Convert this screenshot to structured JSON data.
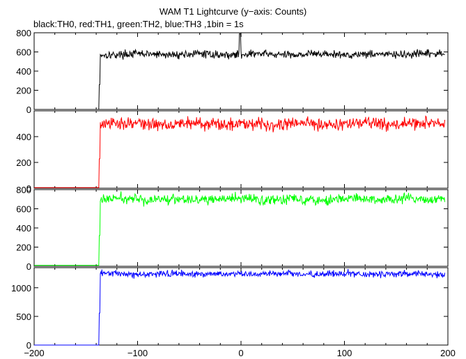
{
  "chart_data": {
    "type": "line",
    "title": "WAM T1 Lightcurve (y−axis: Counts)",
    "subtitle": "black:TH0, red:TH1, green:TH2, blue:TH3 ,1bin = 1s",
    "xlim": [
      -200,
      200
    ],
    "x_ticks": [
      -200,
      -100,
      0,
      100,
      200
    ],
    "x_tick_labels": [
      "−200",
      "−100",
      "0",
      "100",
      "200"
    ],
    "step_x": -137,
    "panels": [
      {
        "name": "TH0",
        "color": "#000000",
        "ylim": [
          0,
          800
        ],
        "y_ticks": [
          0,
          200,
          400,
          600,
          800
        ],
        "y_tick_labels": [
          "0",
          "200",
          "400",
          "600",
          "800"
        ],
        "background_level": 0,
        "signal_level": 575,
        "noise_amplitude": 20,
        "spike": {
          "x": -1,
          "y": 790
        }
      },
      {
        "name": "TH1",
        "color": "#ff0000",
        "ylim": [
          0,
          600
        ],
        "y_ticks": [
          0,
          200,
          400
        ],
        "y_tick_labels": [
          "0",
          "200",
          "400"
        ],
        "background_level": 5,
        "signal_level": 500,
        "noise_amplitude": 24
      },
      {
        "name": "TH2",
        "color": "#00ff00",
        "ylim": [
          0,
          800
        ],
        "y_ticks": [
          0,
          200,
          400,
          600,
          800
        ],
        "y_tick_labels": [
          "0",
          "200",
          "400",
          "600",
          "800"
        ],
        "background_level": 10,
        "signal_level": 700,
        "noise_amplitude": 26
      },
      {
        "name": "TH3",
        "color": "#0000ff",
        "ylim": [
          0,
          1350
        ],
        "y_ticks": [
          0,
          500,
          1000
        ],
        "y_tick_labels": [
          "0",
          "500",
          "1000"
        ],
        "background_level": 0,
        "signal_level": 1240,
        "noise_amplitude": 28
      }
    ]
  }
}
